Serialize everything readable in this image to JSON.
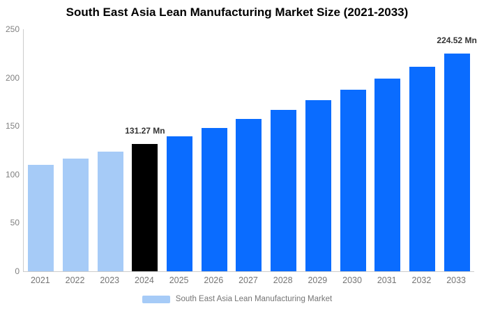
{
  "chart_data": {
    "type": "bar",
    "title": "South East Asia Lean Manufacturing Market Size (2021-2033)",
    "xlabel": "",
    "ylabel": "",
    "unit": "Mn",
    "ylim": [
      0,
      250
    ],
    "y_ticks": [
      0,
      50,
      100,
      150,
      200,
      250
    ],
    "grid": "off",
    "legend_position": "bottom-center",
    "categories": [
      "2021",
      "2022",
      "2023",
      "2024",
      "2025",
      "2026",
      "2027",
      "2028",
      "2029",
      "2030",
      "2031",
      "2032",
      "2033"
    ],
    "values": [
      109.8,
      116.6,
      123.7,
      131.27,
      139.3,
      147.9,
      157.0,
      166.6,
      176.8,
      187.7,
      199.2,
      211.4,
      224.52
    ],
    "bar_styles": [
      "historical",
      "historical",
      "historical",
      "base",
      "forecast",
      "forecast",
      "forecast",
      "forecast",
      "forecast",
      "forecast",
      "forecast",
      "forecast",
      "forecast"
    ],
    "colors": {
      "historical": "#A6CBF7",
      "base": "#000000",
      "forecast": "#0A6CFF",
      "axis_line": "#cccccc",
      "tick_text": "#808080",
      "annotation_text": "#333333"
    },
    "annotations": [
      {
        "category": "2024",
        "text": "131.27 Mn"
      },
      {
        "category": "2033",
        "text": "224.52 Mn"
      }
    ],
    "legend": {
      "label": "South East Asia Lean Manufacturing Market",
      "swatch_color": "#A6CBF7"
    }
  }
}
